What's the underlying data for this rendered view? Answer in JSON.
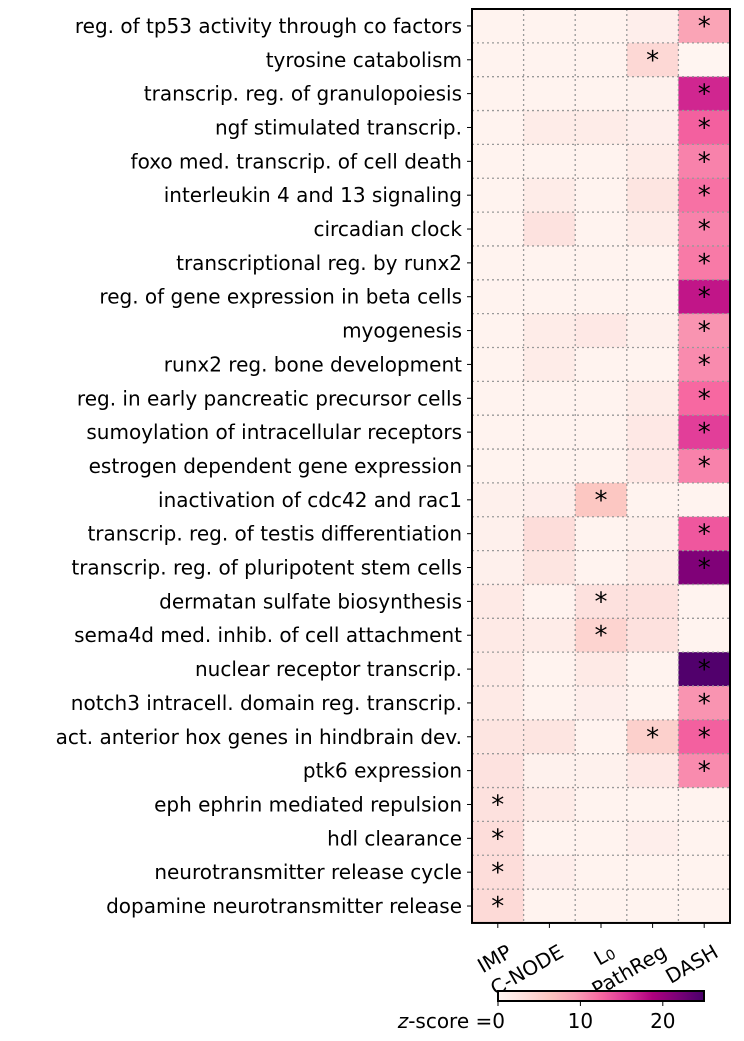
{
  "chart_data": {
    "type": "heatmap",
    "rows": [
      "reg. of tp53 activity through co factors",
      "tyrosine catabolism",
      "transcrip. reg. of granulopoiesis",
      "ngf stimulated transcrip.",
      "foxo med. transcrip. of cell death",
      "interleukin 4 and 13 signaling",
      "circadian clock",
      "transcriptional reg. by runx2",
      "reg. of gene expression in beta cells",
      "myogenesis",
      "runx2 reg. bone development",
      "reg. in early pancreatic precursor cells",
      "sumoylation of intracellular receptors",
      "estrogen dependent gene expression",
      "inactivation of cdc42 and rac1",
      "transcrip. reg. of testis differentiation",
      "transcrip. reg. of pluripotent stem cells",
      "dermatan sulfate biosynthesis",
      "sema4d med. inhib. of cell attachment",
      "nuclear receptor transcrip.",
      "notch3 intracell. domain reg. transcrip.",
      "act. anterior hox genes in hindbrain dev.",
      "ptk6 expression",
      "eph ephrin mediated repulsion",
      "hdl clearance",
      "neurotransmitter release cycle",
      "dopamine neurotransmitter release"
    ],
    "columns": [
      "IMP",
      "C-NODE",
      "L0",
      "PathReg",
      "DASH"
    ],
    "column_labels": [
      {
        "text": "IMP",
        "sub": ""
      },
      {
        "text": "C-NODE",
        "sub": ""
      },
      {
        "text": "L",
        "sub": "0"
      },
      {
        "text": "PathReg",
        "sub": ""
      },
      {
        "text": "DASH",
        "sub": ""
      }
    ],
    "values": [
      [
        0.5,
        0.5,
        0.5,
        1.2,
        9.0
      ],
      [
        0.5,
        0.5,
        0.5,
        4.0,
        0.3
      ],
      [
        0.5,
        0.5,
        0.5,
        0.8,
        16.5
      ],
      [
        0.5,
        1.5,
        1.5,
        1.2,
        13.0
      ],
      [
        0.5,
        0.5,
        0.5,
        1.5,
        11.0
      ],
      [
        0.5,
        1.5,
        0.5,
        2.5,
        12.0
      ],
      [
        0.5,
        2.8,
        0.5,
        1.5,
        11.0
      ],
      [
        0.5,
        0.5,
        0.5,
        0.5,
        11.5
      ],
      [
        0.5,
        0.5,
        0.5,
        0.5,
        17.5
      ],
      [
        0.5,
        1.5,
        2.0,
        1.0,
        10.0
      ],
      [
        0.5,
        1.5,
        0.5,
        0.5,
        10.5
      ],
      [
        0.5,
        0.5,
        0.5,
        1.5,
        12.5
      ],
      [
        0.5,
        0.5,
        0.5,
        2.0,
        15.0
      ],
      [
        0.5,
        0.5,
        0.5,
        2.0,
        11.0
      ],
      [
        1.0,
        1.2,
        6.0,
        0.5,
        0.5
      ],
      [
        1.0,
        3.5,
        0.5,
        1.0,
        13.5
      ],
      [
        1.0,
        2.5,
        0.5,
        1.5,
        21.5
      ],
      [
        1.8,
        0.5,
        3.0,
        3.0,
        0.5
      ],
      [
        1.8,
        1.5,
        4.5,
        3.0,
        0.5
      ],
      [
        1.8,
        0.5,
        1.8,
        0.5,
        24.5
      ],
      [
        1.8,
        0.5,
        1.2,
        0.5,
        10.0
      ],
      [
        2.5,
        2.5,
        0.5,
        5.0,
        13.0
      ],
      [
        2.8,
        0.8,
        0.8,
        2.0,
        10.5
      ],
      [
        3.0,
        1.5,
        0.5,
        0.5,
        0.5
      ],
      [
        3.5,
        0.5,
        0.5,
        1.2,
        0.5
      ],
      [
        3.5,
        1.2,
        0.5,
        0.5,
        0.5
      ],
      [
        3.8,
        0.5,
        0.5,
        0.5,
        0.5
      ]
    ],
    "significant": [
      [
        false,
        false,
        false,
        false,
        true
      ],
      [
        false,
        false,
        false,
        true,
        false
      ],
      [
        false,
        false,
        false,
        false,
        true
      ],
      [
        false,
        false,
        false,
        false,
        true
      ],
      [
        false,
        false,
        false,
        false,
        true
      ],
      [
        false,
        false,
        false,
        false,
        true
      ],
      [
        false,
        false,
        false,
        false,
        true
      ],
      [
        false,
        false,
        false,
        false,
        true
      ],
      [
        false,
        false,
        false,
        false,
        true
      ],
      [
        false,
        false,
        false,
        false,
        true
      ],
      [
        false,
        false,
        false,
        false,
        true
      ],
      [
        false,
        false,
        false,
        false,
        true
      ],
      [
        false,
        false,
        false,
        false,
        true
      ],
      [
        false,
        false,
        false,
        false,
        true
      ],
      [
        false,
        false,
        true,
        false,
        false
      ],
      [
        false,
        false,
        false,
        false,
        true
      ],
      [
        false,
        false,
        false,
        false,
        true
      ],
      [
        false,
        false,
        true,
        false,
        false
      ],
      [
        false,
        false,
        true,
        false,
        false
      ],
      [
        false,
        false,
        false,
        false,
        true
      ],
      [
        false,
        false,
        false,
        false,
        true
      ],
      [
        false,
        false,
        false,
        true,
        true
      ],
      [
        false,
        false,
        false,
        false,
        true
      ],
      [
        true,
        false,
        false,
        false,
        false
      ],
      [
        true,
        false,
        false,
        false,
        false
      ],
      [
        true,
        false,
        false,
        false,
        false
      ],
      [
        true,
        false,
        false,
        false,
        false
      ]
    ],
    "marker": "*",
    "colormap": "RdPu",
    "colormap_stops": [
      "#fff7f3",
      "#fde0dd",
      "#fcc5c0",
      "#fa9fb5",
      "#f768a1",
      "#dd3497",
      "#ae017e",
      "#7a0177",
      "#49006a"
    ],
    "vmin": 0,
    "vmax": 25,
    "colorbar": {
      "label_prefix": "z",
      "label_suffix": "-score =",
      "ticks": [
        0,
        10,
        20
      ],
      "tick_labels": [
        "0",
        "10",
        "20"
      ]
    },
    "grid": "dotted"
  }
}
